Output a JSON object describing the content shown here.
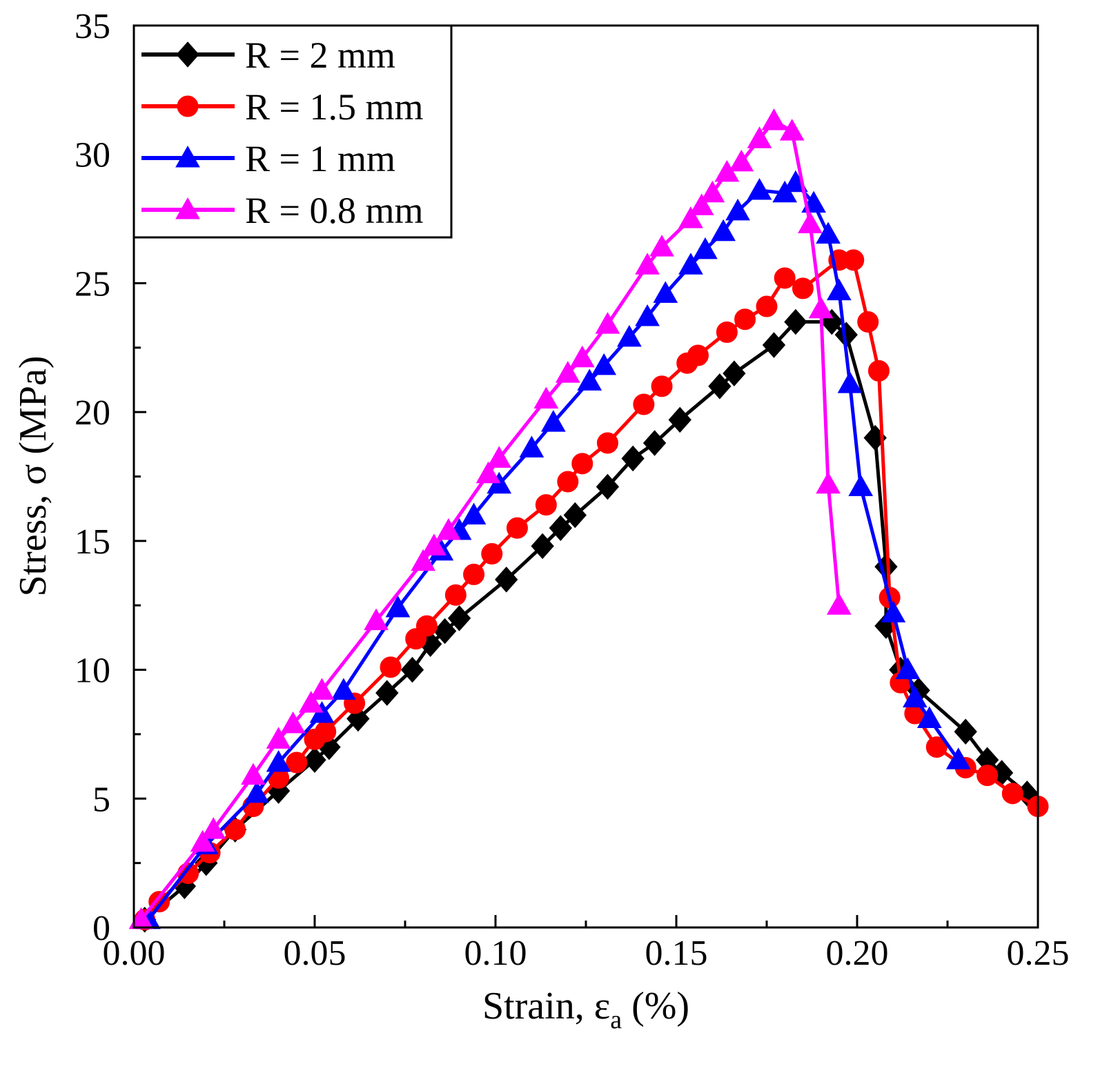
{
  "chart_data": {
    "type": "line",
    "title": "",
    "xlabel": "Strain, ε",
    "xlabel_sub": "a",
    "xlabel_unit": " (%)",
    "ylabel": "Stress, σ (MPa)",
    "xlim": [
      0,
      0.25
    ],
    "ylim": [
      0,
      35
    ],
    "grid": false,
    "legend_position": "top-left",
    "x_ticks": [
      {
        "value": 0,
        "label": "0.00"
      },
      {
        "value": 0.05,
        "label": "0.05"
      },
      {
        "value": 0.1,
        "label": "0.10"
      },
      {
        "value": 0.15,
        "label": "0.15"
      },
      {
        "value": 0.2,
        "label": "0.20"
      },
      {
        "value": 0.25,
        "label": "0.25"
      }
    ],
    "y_ticks": [
      {
        "value": 0,
        "label": "0"
      },
      {
        "value": 5,
        "label": "5"
      },
      {
        "value": 10,
        "label": "10"
      },
      {
        "value": 15,
        "label": "15"
      },
      {
        "value": 20,
        "label": "20"
      },
      {
        "value": 25,
        "label": "25"
      },
      {
        "value": 30,
        "label": "30"
      },
      {
        "value": 35,
        "label": "35"
      }
    ],
    "series": [
      {
        "name": "R = 2 mm",
        "color": "#000000",
        "marker": "diamond",
        "points": [
          [
            0.003,
            0.3
          ],
          [
            0.014,
            1.6
          ],
          [
            0.02,
            2.5
          ],
          [
            0.028,
            3.8
          ],
          [
            0.04,
            5.3
          ],
          [
            0.05,
            6.5
          ],
          [
            0.054,
            7
          ],
          [
            0.062,
            8.1
          ],
          [
            0.07,
            9.1
          ],
          [
            0.077,
            10
          ],
          [
            0.082,
            11
          ],
          [
            0.086,
            11.5
          ],
          [
            0.09,
            12
          ],
          [
            0.103,
            13.5
          ],
          [
            0.113,
            14.8
          ],
          [
            0.118,
            15.5
          ],
          [
            0.122,
            16
          ],
          [
            0.131,
            17.1
          ],
          [
            0.138,
            18.2
          ],
          [
            0.144,
            18.8
          ],
          [
            0.151,
            19.7
          ],
          [
            0.162,
            21
          ],
          [
            0.166,
            21.5
          ],
          [
            0.177,
            22.6
          ],
          [
            0.183,
            23.5
          ],
          [
            0.193,
            23.5
          ],
          [
            0.197,
            23
          ],
          [
            0.205,
            19
          ],
          [
            0.208,
            14
          ],
          [
            0.208,
            11.7
          ],
          [
            0.212,
            10
          ],
          [
            0.217,
            9.2
          ],
          [
            0.23,
            7.6
          ],
          [
            0.236,
            6.5
          ],
          [
            0.24,
            6
          ],
          [
            0.247,
            5.2
          ]
        ]
      },
      {
        "name": "R = 1.5 mm",
        "color": "#ff0000",
        "marker": "circle",
        "points": [
          [
            0.003,
            0.3
          ],
          [
            0.007,
            1
          ],
          [
            0.015,
            2.1
          ],
          [
            0.021,
            2.9
          ],
          [
            0.028,
            3.8
          ],
          [
            0.033,
            4.7
          ],
          [
            0.04,
            5.8
          ],
          [
            0.045,
            6.4
          ],
          [
            0.05,
            7.3
          ],
          [
            0.053,
            7.6
          ],
          [
            0.061,
            8.7
          ],
          [
            0.071,
            10.1
          ],
          [
            0.078,
            11.2
          ],
          [
            0.081,
            11.7
          ],
          [
            0.089,
            12.9
          ],
          [
            0.094,
            13.7
          ],
          [
            0.099,
            14.5
          ],
          [
            0.106,
            15.5
          ],
          [
            0.114,
            16.4
          ],
          [
            0.12,
            17.3
          ],
          [
            0.124,
            18
          ],
          [
            0.131,
            18.8
          ],
          [
            0.141,
            20.3
          ],
          [
            0.146,
            21
          ],
          [
            0.153,
            21.9
          ],
          [
            0.156,
            22.2
          ],
          [
            0.164,
            23.1
          ],
          [
            0.169,
            23.6
          ],
          [
            0.175,
            24.1
          ],
          [
            0.18,
            25.2
          ],
          [
            0.185,
            24.8
          ],
          [
            0.195,
            25.9
          ],
          [
            0.199,
            25.9
          ],
          [
            0.203,
            23.5
          ],
          [
            0.206,
            21.6
          ],
          [
            0.209,
            12.8
          ],
          [
            0.212,
            9.5
          ],
          [
            0.216,
            8.3
          ],
          [
            0.222,
            7
          ],
          [
            0.23,
            6.2
          ],
          [
            0.236,
            5.9
          ],
          [
            0.243,
            5.2
          ],
          [
            0.25,
            4.7
          ]
        ]
      },
      {
        "name": "R = 1 mm",
        "color": "#0000ff",
        "marker": "triangle",
        "points": [
          [
            0.004,
            0.3
          ],
          [
            0.02,
            3.2
          ],
          [
            0.034,
            5.2
          ],
          [
            0.04,
            6.4
          ],
          [
            0.052,
            8.3
          ],
          [
            0.058,
            9.2
          ],
          [
            0.073,
            12.4
          ],
          [
            0.085,
            14.6
          ],
          [
            0.09,
            15.4
          ],
          [
            0.094,
            16
          ],
          [
            0.101,
            17.2
          ],
          [
            0.11,
            18.6
          ],
          [
            0.116,
            19.6
          ],
          [
            0.126,
            21.2
          ],
          [
            0.13,
            21.8
          ],
          [
            0.137,
            22.9
          ],
          [
            0.142,
            23.7
          ],
          [
            0.147,
            24.6
          ],
          [
            0.154,
            25.7
          ],
          [
            0.158,
            26.3
          ],
          [
            0.163,
            27
          ],
          [
            0.167,
            27.8
          ],
          [
            0.173,
            28.6
          ],
          [
            0.18,
            28.5
          ],
          [
            0.183,
            28.9
          ],
          [
            0.188,
            28.1
          ],
          [
            0.192,
            26.9
          ],
          [
            0.195,
            24.7
          ],
          [
            0.198,
            21.1
          ],
          [
            0.201,
            17.1
          ],
          [
            0.21,
            12.2
          ],
          [
            0.214,
            10
          ],
          [
            0.216,
            8.9
          ],
          [
            0.22,
            8.1
          ],
          [
            0.228,
            6.5
          ]
        ]
      },
      {
        "name": "R = 0.8 mm",
        "color": "#ff00ff",
        "marker": "triangle",
        "points": [
          [
            0.002,
            0.3
          ],
          [
            0.019,
            3.3
          ],
          [
            0.022,
            3.8
          ],
          [
            0.033,
            5.9
          ],
          [
            0.04,
            7.3
          ],
          [
            0.044,
            7.9
          ],
          [
            0.049,
            8.7
          ],
          [
            0.052,
            9.2
          ],
          [
            0.067,
            11.9
          ],
          [
            0.08,
            14.2
          ],
          [
            0.083,
            14.8
          ],
          [
            0.087,
            15.4
          ],
          [
            0.098,
            17.6
          ],
          [
            0.101,
            18.2
          ],
          [
            0.114,
            20.5
          ],
          [
            0.12,
            21.5
          ],
          [
            0.124,
            22.1
          ],
          [
            0.131,
            23.4
          ],
          [
            0.142,
            25.7
          ],
          [
            0.146,
            26.4
          ],
          [
            0.154,
            27.5
          ],
          [
            0.157,
            28
          ],
          [
            0.16,
            28.5
          ],
          [
            0.164,
            29.3
          ],
          [
            0.168,
            29.7
          ],
          [
            0.173,
            30.6
          ],
          [
            0.177,
            31.3
          ],
          [
            0.182,
            30.9
          ],
          [
            0.187,
            27.3
          ],
          [
            0.19,
            24
          ],
          [
            0.192,
            17.2
          ],
          [
            0.195,
            12.5
          ]
        ]
      }
    ]
  }
}
